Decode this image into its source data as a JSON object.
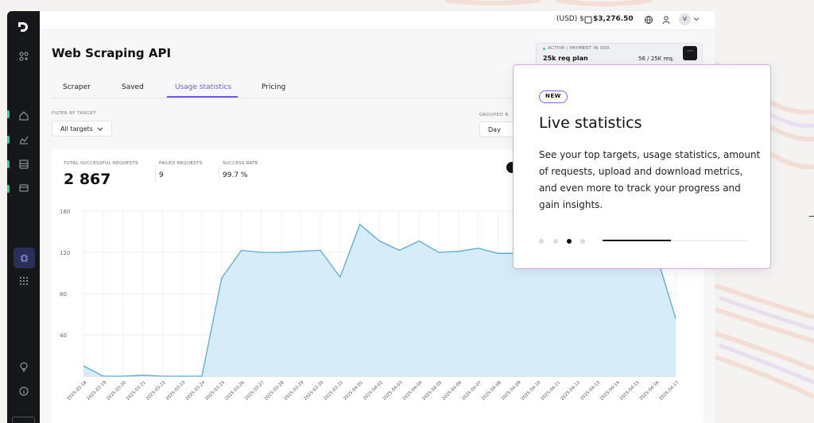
{
  "topbar": {
    "currency": "(USD) $",
    "balance": "$3,276.50",
    "avatar_initial": "V"
  },
  "page": {
    "title": "Web Scraping API"
  },
  "plan": {
    "status": "ACTIVE / PAYMENT IN 30D.",
    "name": "25k req plan",
    "usage": "56 / 25K req.",
    "more_label": "···"
  },
  "tabs": [
    {
      "label": "Scraper"
    },
    {
      "label": "Saved"
    },
    {
      "label": "Usage statistics"
    },
    {
      "label": "Pricing"
    }
  ],
  "filters": {
    "target_label": "FILTER BY TARGET",
    "target_value": "All targets",
    "grouped_label": "GROUPED B",
    "grouped_value": "Day"
  },
  "metrics": {
    "total_label": "TOTAL SUCCESSFUL REQUESTS",
    "total_value": "2 867",
    "failed_label": "FAILED REQUESTS",
    "failed_value": "9",
    "rate_label": "SUCCESS RATE",
    "rate_value": "99.7 %"
  },
  "popover": {
    "badge": "NEW",
    "title": "Live statistics",
    "description": "See your top targets, usage statistics, amount of requests, upload and download metrics, and even more to track your progress and gain insights.",
    "active_step": 3,
    "steps": 4
  },
  "colors": {
    "accent": "#6a5bdc",
    "line": "#5aa9d6",
    "area": "#d7ecf9",
    "sidebar": "#16171b",
    "active_green": "#2bd38b"
  },
  "chart_data": {
    "type": "area",
    "x": [
      "2025-03-18",
      "2025-03-19",
      "2025-03-20",
      "2025-03-21",
      "2025-03-22",
      "2025-03-23",
      "2025-03-24",
      "2025-03-25",
      "2025-03-26",
      "2025-03-27",
      "2025-03-28",
      "2025-03-29",
      "2025-03-30",
      "2025-03-31",
      "2025-04-01",
      "2025-04-02",
      "2025-04-03",
      "2025-04-04",
      "2025-04-05",
      "2025-04-06",
      "2025-04-07",
      "2025-04-08",
      "2025-04-09",
      "2025-04-10",
      "2025-04-11",
      "2025-04-12",
      "2025-04-13",
      "2025-04-14",
      "2025-04-15",
      "2025-04-16",
      "2025-04-17"
    ],
    "series": [
      {
        "values": [
          10,
          0,
          0,
          1,
          0,
          0,
          0,
          95,
          122,
          120,
          120,
          121,
          122,
          96,
          147,
          131,
          122,
          131,
          120,
          121,
          124,
          119,
          119,
          119,
          119,
          119,
          119,
          119,
          119,
          119,
          56
        ]
      }
    ],
    "yticks": [
      40,
      80,
      120,
      160
    ],
    "ylim": [
      0,
      160
    ],
    "grid": true
  }
}
